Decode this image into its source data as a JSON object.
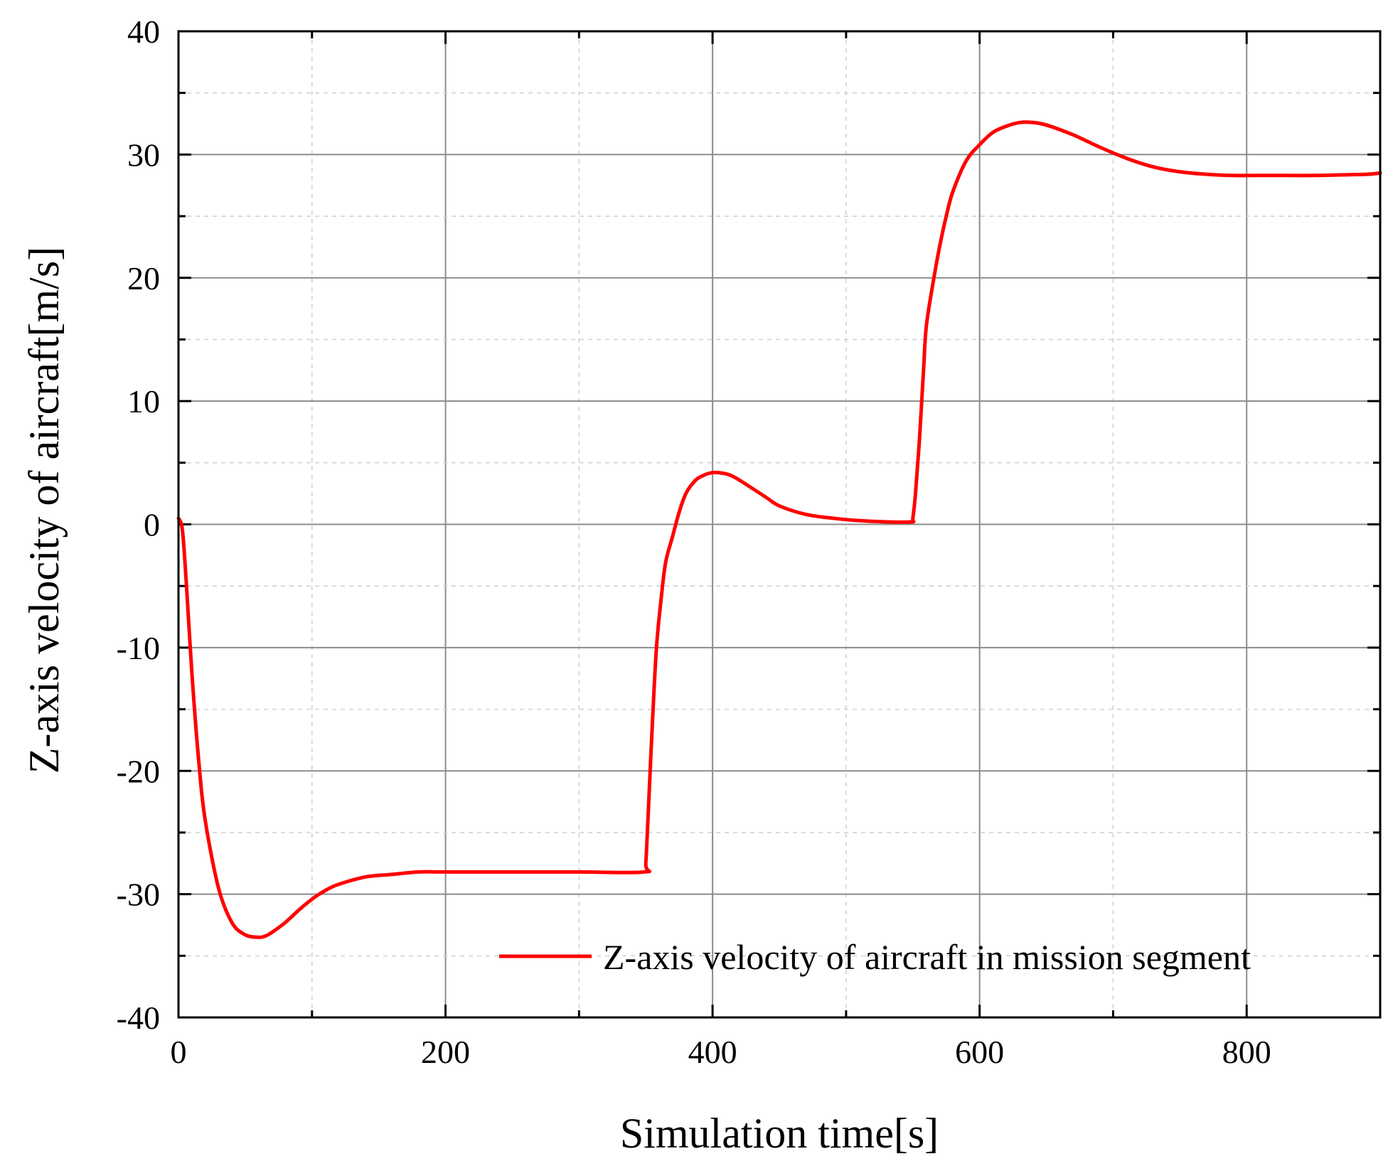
{
  "chart_data": {
    "type": "line",
    "title": "",
    "xlabel": "Simulation time[s]",
    "ylabel": "Z-axis velocity of aircraft[m/s]",
    "xlim": [
      0,
      900
    ],
    "ylim": [
      -40,
      40
    ],
    "x_ticks": [
      0,
      200,
      400,
      600,
      800
    ],
    "x_tick_labels": [
      "0",
      "200",
      "400",
      "600",
      "800"
    ],
    "x_minor_ticks": [
      100,
      300,
      500,
      700
    ],
    "y_ticks": [
      40,
      30,
      20,
      10,
      0,
      -10,
      -20,
      -30,
      -40
    ],
    "y_tick_labels": [
      "40",
      "30",
      "20",
      "10",
      "0",
      "-10",
      "-20",
      "-30",
      "-40"
    ],
    "y_minor_ticks": [
      35,
      25,
      15,
      5,
      -5,
      -15,
      -25,
      -35
    ],
    "grid": true,
    "legend_position": "bottom-right",
    "series": [
      {
        "name": "Z-axis velocity of aircraft in mission segment",
        "color": "#ff0000",
        "x": [
          0,
          3,
          6,
          10,
          15,
          20,
          30,
          40,
          50,
          60,
          65,
          70,
          80,
          90,
          100,
          110,
          120,
          140,
          160,
          180,
          200,
          250,
          300,
          349,
          350,
          352,
          355,
          358,
          362,
          365,
          370,
          375,
          380,
          385,
          390,
          400,
          410,
          415,
          420,
          430,
          440,
          450,
          470,
          490,
          510,
          530,
          549,
          550,
          552,
          555,
          558,
          560,
          565,
          570,
          575,
          580,
          590,
          600,
          610,
          620,
          630,
          640,
          650,
          670,
          690,
          710,
          730,
          750,
          770,
          790,
          810,
          830,
          850,
          870,
          890,
          900
        ],
        "y": [
          0.5,
          -0.5,
          -5,
          -12,
          -19,
          -24,
          -29.5,
          -32.3,
          -33.3,
          -33.5,
          -33.4,
          -33.1,
          -32.3,
          -31.3,
          -30.4,
          -29.7,
          -29.2,
          -28.6,
          -28.4,
          -28.2,
          -28.2,
          -28.2,
          -28.2,
          -28.2,
          -27.5,
          -23,
          -16,
          -10,
          -5.5,
          -3,
          -1,
          1,
          2.5,
          3.3,
          3.8,
          4.2,
          4.1,
          3.9,
          3.6,
          2.9,
          2.2,
          1.5,
          0.8,
          0.5,
          0.3,
          0.2,
          0.2,
          0.5,
          2.5,
          7,
          12.5,
          16,
          19.5,
          22.5,
          25,
          27,
          29.5,
          30.8,
          31.8,
          32.3,
          32.6,
          32.6,
          32.4,
          31.6,
          30.6,
          29.7,
          29.0,
          28.6,
          28.4,
          28.3,
          28.3,
          28.3,
          28.3,
          28.35,
          28.4,
          28.5
        ]
      }
    ]
  }
}
